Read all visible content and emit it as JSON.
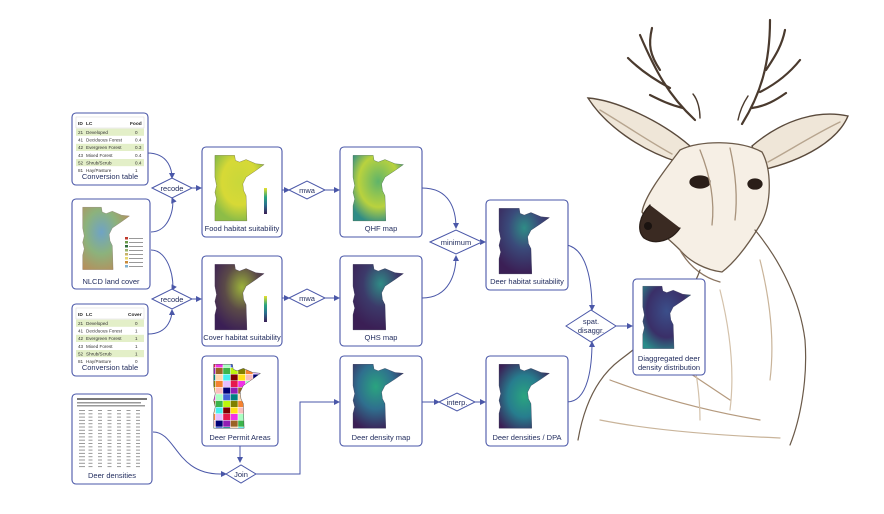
{
  "nodes": {
    "conversion_table_food": {
      "caption": "Conversion table",
      "header": [
        "ID",
        "LC",
        "Food"
      ],
      "rows": [
        [
          "21",
          "Developed",
          "0"
        ],
        [
          "41",
          "Deciduous Forest",
          "0.4"
        ],
        [
          "42",
          "Evergreen Forest",
          "0.3"
        ],
        [
          "43",
          "Mixed Forest",
          "0.4"
        ],
        [
          "52",
          "Shrub/Scrub",
          "0.4"
        ],
        [
          "81",
          "Hay/Pasture",
          "1"
        ]
      ]
    },
    "nlcd_land_cover": {
      "caption": "NLCD land cover"
    },
    "conversion_table_cover": {
      "caption": "Conversion table",
      "header": [
        "ID",
        "LC",
        "Cover"
      ],
      "rows": [
        [
          "21",
          "Developed",
          "0"
        ],
        [
          "41",
          "Deciduous Forest",
          "1"
        ],
        [
          "42",
          "Evergreen Forest",
          "1"
        ],
        [
          "43",
          "Mixed Forest",
          "1"
        ],
        [
          "52",
          "Shrub/Scrub",
          "1"
        ],
        [
          "81",
          "Hay/Pasture",
          "0"
        ]
      ]
    },
    "deer_densities": {
      "caption": "Deer densities"
    },
    "food_habitat_suitability": {
      "caption": "Food habitat suitability"
    },
    "cover_habitat_suitability": {
      "caption": "Cover habitat suitability"
    },
    "deer_permit_areas": {
      "caption": "Deer Permit Areas"
    },
    "qhf_map": {
      "caption": "QHF map"
    },
    "qhs_map": {
      "caption": "QHS map"
    },
    "deer_density_map": {
      "caption": "Deer density map"
    },
    "deer_habitat_suitability": {
      "caption": "Deer habitat suitability"
    },
    "deer_densities_dpa": {
      "caption": "Deer densities / DPA"
    },
    "disaggregated": {
      "caption_line1": "Diaggregated deer",
      "caption_line2": "density distribution"
    }
  },
  "operations": {
    "recode_food": "recode",
    "recode_cover": "recode",
    "mwa_food": "mwa",
    "mwa_cover": "mwa",
    "minimum": "minimum",
    "interp": "interp.",
    "spat_disaggr_line1": "spat.",
    "spat_disaggr_line2": "disaggr.",
    "join": "Join"
  },
  "colors": {
    "node_border": "#4a57a8",
    "caption_text": "#1f2a5c",
    "map_dark": "#3b1f55",
    "map_teal": "#2a8c8a",
    "map_green": "#4fb06b",
    "map_yellow": "#e8e02c",
    "table_row_highlight": "#e3efc8"
  }
}
